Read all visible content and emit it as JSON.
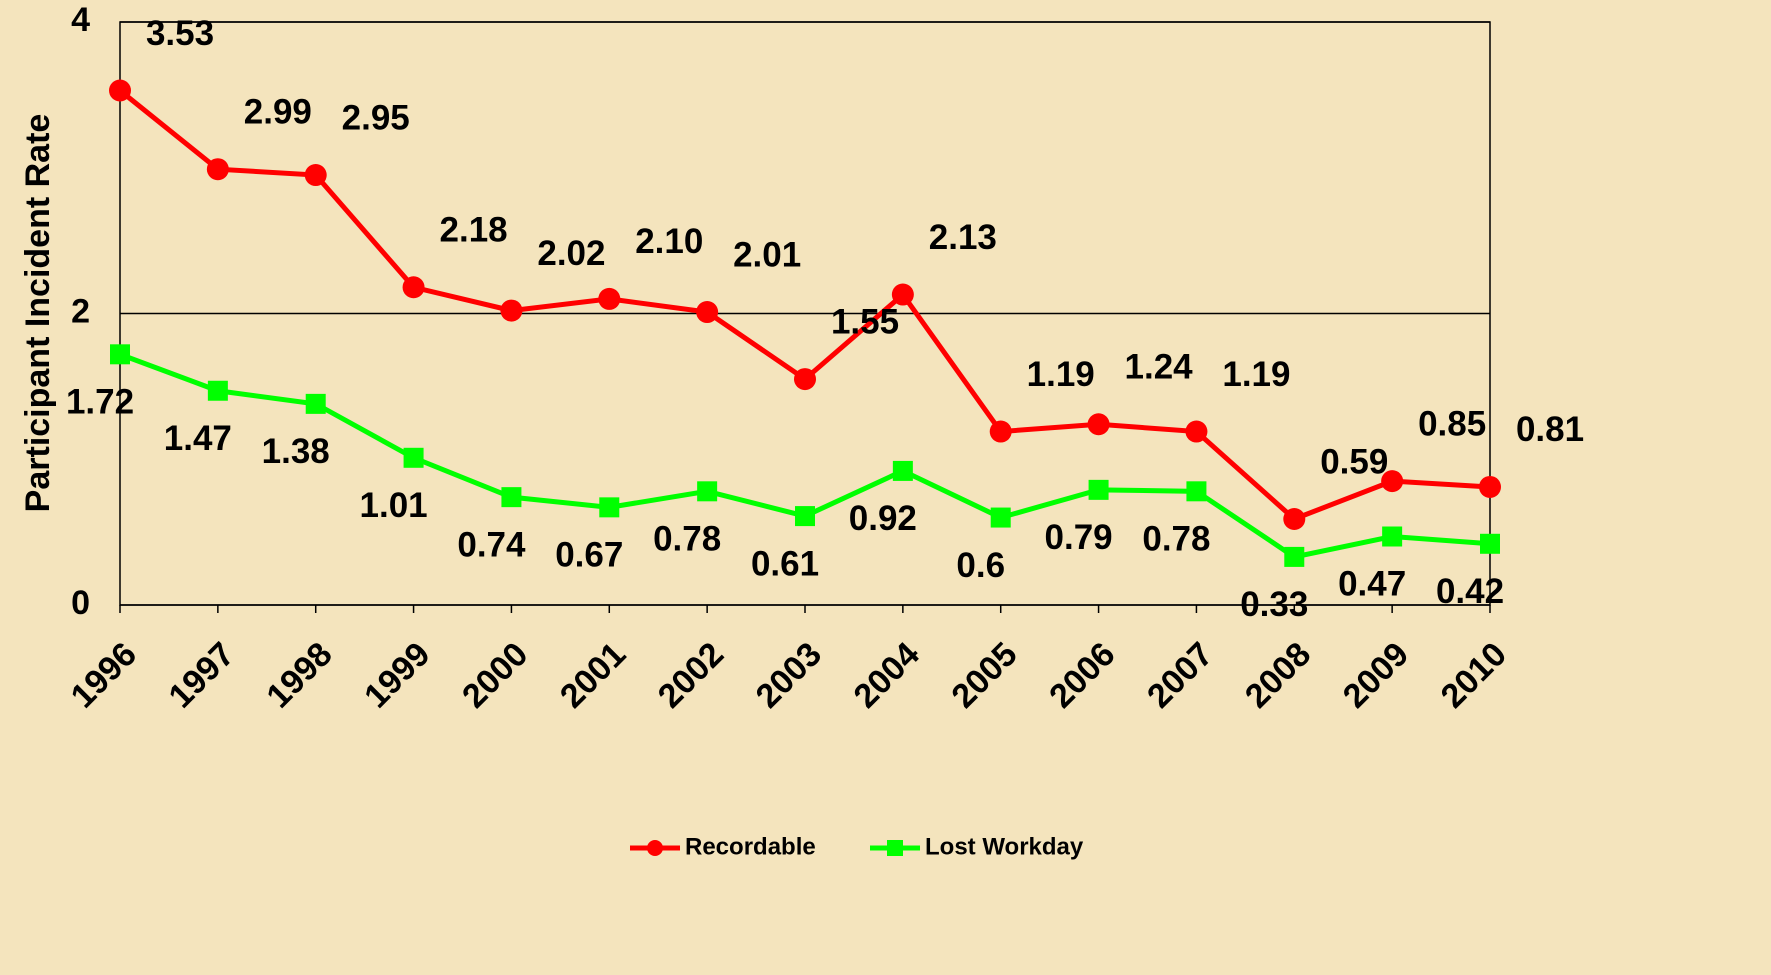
{
  "chart_data": {
    "type": "line",
    "y_label": "Participant Incident Rate",
    "categories": [
      "1996",
      "1997",
      "1998",
      "1999",
      "2000",
      "2001",
      "2002",
      "2003",
      "2004",
      "2005",
      "2006",
      "2007",
      "2008",
      "2009",
      "2010"
    ],
    "series": [
      {
        "name": "Recordable",
        "color": "#ff0000",
        "marker": "circle",
        "values": [
          3.53,
          2.99,
          2.95,
          2.18,
          2.02,
          2.1,
          2.01,
          1.55,
          2.13,
          1.19,
          1.24,
          1.19,
          0.59,
          0.85,
          0.81
        ],
        "value_labels": [
          "3.53",
          "2.99",
          "2.95",
          "2.18",
          "2.02",
          "2.10",
          "2.01",
          "1.55",
          "2.13",
          "1.19",
          "1.24",
          "1.19",
          "0.59",
          "0.85",
          "0.81"
        ]
      },
      {
        "name": "Lost Workday",
        "color": "#00ff00",
        "marker": "square",
        "values": [
          1.72,
          1.47,
          1.38,
          1.01,
          0.74,
          0.67,
          0.78,
          0.61,
          0.92,
          0.6,
          0.79,
          0.78,
          0.33,
          0.47,
          0.42
        ],
        "value_labels": [
          "1.72",
          "1.47",
          "1.38",
          "1.01",
          "0.74",
          "0.67",
          "0.78",
          "0.61",
          "0.92",
          "0.6",
          "0.79",
          "0.78",
          "0.33",
          "0.47",
          "0.42"
        ]
      }
    ],
    "ylim": [
      0,
      4
    ],
    "yticks": [
      0,
      2,
      4
    ],
    "grid": true,
    "legend": "bottom"
  }
}
